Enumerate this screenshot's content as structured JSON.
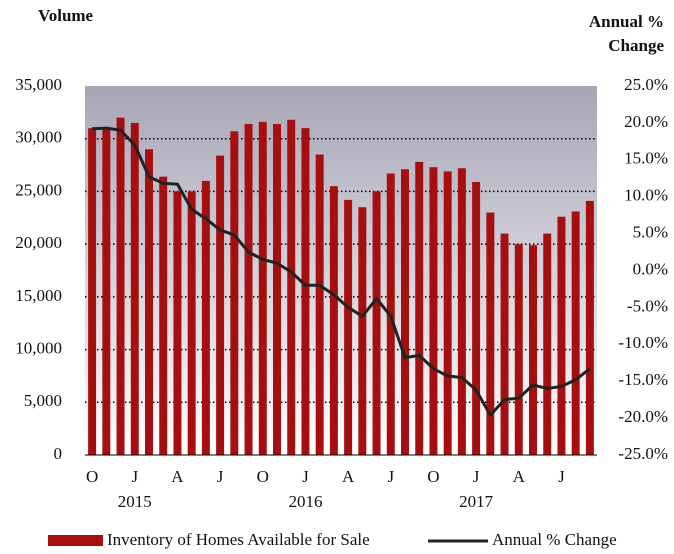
{
  "chart_data": {
    "type": "bar",
    "ylabel": "Volume",
    "y2label": "Annual % Change",
    "categories": [
      "O",
      null,
      null,
      "J",
      null,
      null,
      "A",
      null,
      null,
      "J",
      null,
      null,
      "O",
      null,
      null,
      "J",
      null,
      null,
      "A",
      null,
      null,
      "J",
      null,
      null,
      "O",
      null,
      null,
      "J",
      null,
      null,
      "A",
      null,
      null,
      "J",
      null,
      null
    ],
    "years": [
      null,
      null,
      null,
      "2015",
      null,
      null,
      null,
      null,
      null,
      null,
      null,
      null,
      null,
      null,
      null,
      "2016",
      null,
      null,
      null,
      null,
      null,
      null,
      null,
      null,
      null,
      null,
      null,
      "2017",
      null,
      null,
      null,
      null,
      null,
      null,
      null,
      null
    ],
    "series": [
      {
        "name": "Inventory of Homes Available for Sale",
        "type": "bar",
        "color": "#a50f0f",
        "values": [
          31000,
          31000,
          32000,
          31500,
          29000,
          26400,
          25000,
          25000,
          26000,
          28400,
          30700,
          31400,
          31600,
          31400,
          31800,
          31000,
          28500,
          25500,
          24200,
          23500,
          25000,
          26700,
          27100,
          27800,
          27300,
          26900,
          27200,
          25900,
          23000,
          21000,
          20000,
          19900,
          21000,
          22600,
          23100,
          24100
        ]
      },
      {
        "name": "Annual % Change",
        "type": "line",
        "axis": "y2",
        "color": "#222222",
        "values": [
          19.2,
          19.3,
          19.0,
          17.0,
          12.7,
          11.8,
          11.7,
          8.3,
          7.0,
          5.5,
          4.8,
          2.5,
          1.5,
          1.0,
          -0.2,
          -2.0,
          -2.0,
          -3.3,
          -5.0,
          -6.2,
          -3.8,
          -6.2,
          -11.8,
          -11.5,
          -13.3,
          -14.3,
          -14.5,
          -16.2,
          -19.6,
          -17.5,
          -17.3,
          -15.5,
          -16.0,
          -15.7,
          -14.8,
          -13.3
        ]
      }
    ],
    "ylim": [
      0,
      35000
    ],
    "yticks": [
      0,
      {
        "value": 5000,
        "label": "5,000"
      },
      {
        "value": 10000,
        "label": "10,000"
      },
      {
        "value": 15000,
        "label": "15,000"
      },
      {
        "value": 20000,
        "label": "20,000"
      },
      {
        "value": 25000,
        "label": "25,000"
      },
      {
        "value": 30000,
        "label": "30,000"
      },
      {
        "value": 35000,
        "label": "35,000"
      }
    ],
    "y2lim": [
      -25,
      25
    ],
    "y2ticks": [
      {
        "value": -25,
        "label": "-25.0%"
      },
      {
        "value": -20,
        "label": "-20.0%"
      },
      {
        "value": -15,
        "label": "-15.0%"
      },
      {
        "value": -10,
        "label": "-10.0%"
      },
      {
        "value": -5,
        "label": "-5.0%"
      },
      {
        "value": 0,
        "label": "0.0%"
      },
      {
        "value": 5,
        "label": "5.0%"
      },
      {
        "value": 10,
        "label": "10.0%"
      },
      {
        "value": 15,
        "label": "15.0%"
      },
      {
        "value": 20,
        "label": "20.0%"
      },
      {
        "value": 25,
        "label": "25.0%"
      }
    ],
    "grid": true
  }
}
